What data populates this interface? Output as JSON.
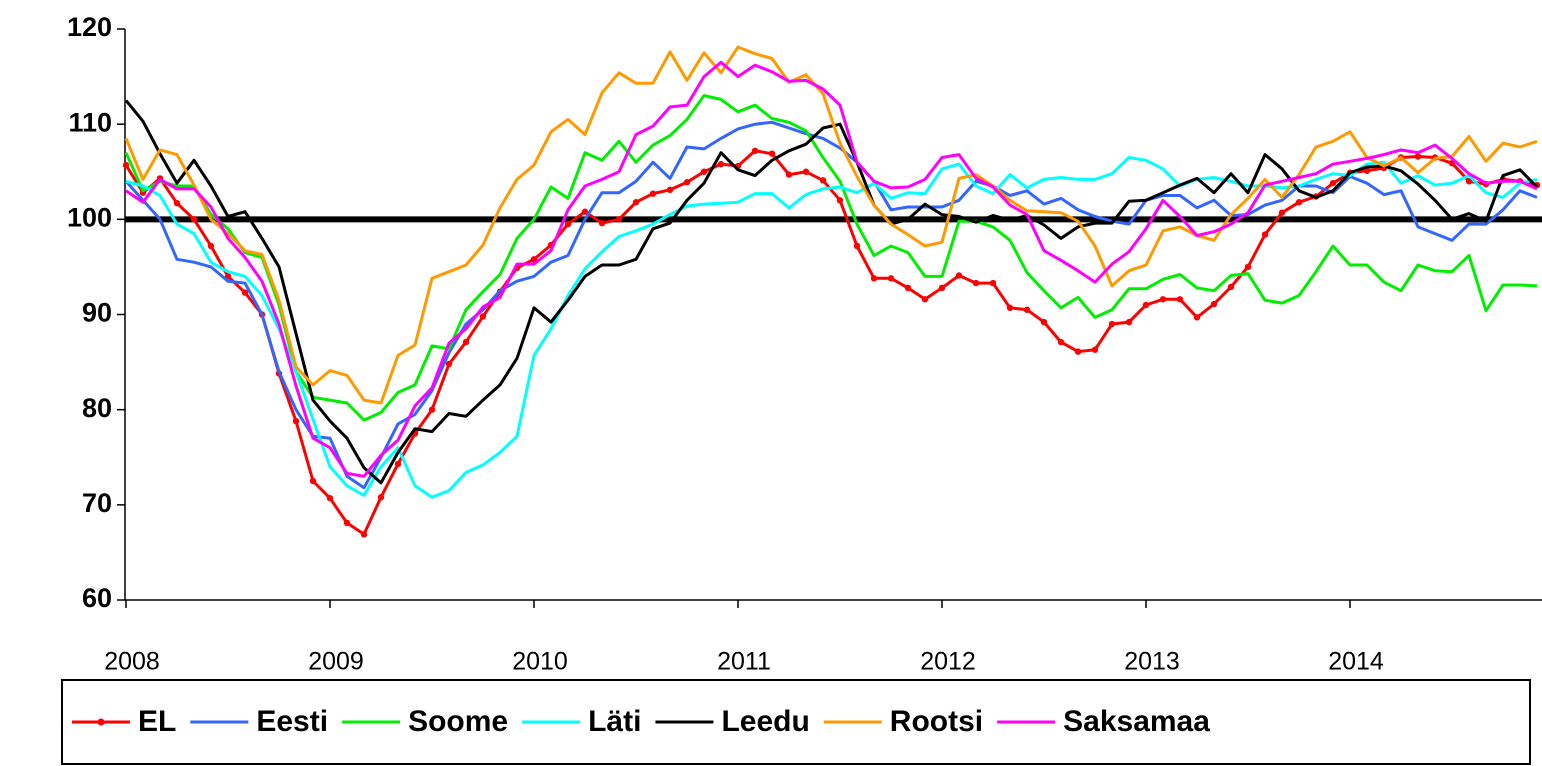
{
  "chart_data": {
    "type": "line",
    "categories": [
      "2008",
      null,
      null,
      null,
      null,
      null,
      null,
      null,
      null,
      null,
      null,
      null,
      "2009",
      null,
      null,
      null,
      null,
      null,
      null,
      null,
      null,
      null,
      null,
      null,
      "2010",
      null,
      null,
      null,
      null,
      null,
      null,
      null,
      null,
      null,
      null,
      null,
      "2011",
      null,
      null,
      null,
      null,
      null,
      null,
      null,
      null,
      null,
      null,
      null,
      "2012",
      null,
      null,
      null,
      null,
      null,
      null,
      null,
      null,
      null,
      null,
      null,
      "2013",
      null,
      null,
      null,
      null,
      null,
      null,
      null,
      null,
      null,
      null,
      null,
      "2014",
      null,
      null,
      null,
      null,
      null,
      null,
      null,
      null,
      null,
      null,
      null
    ],
    "ylim": [
      60,
      120
    ],
    "yticks": [
      60,
      70,
      80,
      90,
      100,
      110,
      120
    ],
    "reference_line": 100,
    "series": [
      {
        "name": "EL",
        "color": "#ff0000",
        "markers": true,
        "values": [
          105.7,
          102.8,
          104.3,
          101.7,
          100,
          97.2,
          94,
          92.3,
          90,
          83.8,
          78.8,
          72.5,
          70.7,
          68.1,
          66.9,
          70.8,
          74.3,
          77.5,
          80,
          84.8,
          87.1,
          89.8,
          92.4,
          94.9,
          95.8,
          97.3,
          99.5,
          100.8,
          99.6,
          100,
          101.8,
          102.7,
          103.1,
          103.9,
          105,
          105.8,
          105.6,
          107.2,
          106.9,
          104.7,
          105,
          104.1,
          102,
          97.2,
          93.8,
          93.8,
          92.8,
          91.6,
          92.8,
          94.1,
          93.3,
          93.3,
          90.7,
          90.5,
          89.2,
          87.1,
          86.1,
          86.3,
          89,
          89.2,
          91,
          91.6,
          91.6,
          89.7,
          91.1,
          92.9,
          95,
          98.4,
          100.7,
          101.8,
          102.4,
          103.8,
          104.9,
          105.1,
          105.4,
          106.5,
          106.6,
          106.5,
          105.9,
          104,
          103.7,
          104.2,
          104,
          103.6
        ]
      },
      {
        "name": "Eesti",
        "color": "#3366ff",
        "values": [
          104,
          102,
          100,
          95.8,
          95.5,
          95,
          93.5,
          93.3,
          90,
          84,
          80,
          77.2,
          77,
          73,
          71.8,
          75,
          78.5,
          79.5,
          82,
          86,
          89,
          90.5,
          92.5,
          93.5,
          94,
          95.5,
          96.2,
          100,
          102.8,
          102.8,
          104,
          106,
          104.3,
          107.6,
          107.4,
          108.5,
          109.5,
          110,
          110.2,
          109.6,
          109,
          108.5,
          107.5,
          106,
          104,
          101,
          101.3,
          101.3,
          101.3,
          102,
          104,
          103.5,
          102.5,
          103,
          101.6,
          102.2,
          101,
          100.3,
          99.8,
          99.5,
          102,
          102.5,
          102.5,
          101.2,
          102,
          100.4,
          100.5,
          101.5,
          102,
          103.5,
          103.5,
          102.8,
          104.5,
          103.8,
          102.6,
          103,
          99.2,
          98.5,
          97.8,
          99.5,
          99.5,
          101,
          103,
          102.3
        ]
      },
      {
        "name": "Soome",
        "color": "#00ee00",
        "values": [
          107,
          103,
          104,
          103.5,
          103.5,
          100.5,
          99,
          96.5,
          96,
          91,
          84,
          81.3,
          81,
          80.7,
          78.9,
          79.7,
          81.8,
          82.6,
          86.7,
          86.4,
          90.5,
          92.4,
          94.2,
          98,
          100,
          103.4,
          102.2,
          107,
          106.2,
          108.2,
          106,
          107.8,
          108.8,
          110.5,
          113,
          112.6,
          111.3,
          112,
          110.6,
          110.2,
          109.3,
          106.5,
          104,
          99.5,
          96.2,
          97.2,
          96.5,
          94,
          94,
          99.8,
          99.8,
          99.2,
          97.8,
          94.4,
          92.5,
          90.7,
          91.8,
          89.7,
          90.5,
          92.7,
          92.7,
          93.7,
          94.2,
          92.8,
          92.5,
          94.1,
          94.3,
          91.5,
          91.2,
          92,
          94.5,
          97.2,
          95.2,
          95.2,
          93.4,
          92.5,
          95.2,
          94.6,
          94.5,
          96.2,
          90.4,
          93.1,
          93.1,
          93
        ]
      },
      {
        "name": "Läti",
        "color": "#00ffff",
        "values": [
          104,
          103.5,
          102.5,
          99.5,
          98.5,
          95.5,
          94.5,
          94,
          92,
          88.5,
          84,
          79,
          74,
          72,
          71,
          74,
          76,
          72,
          70.8,
          71.5,
          73.4,
          74.2,
          75.5,
          77.2,
          85.7,
          88.5,
          92,
          94.8,
          96.6,
          98.2,
          98.8,
          99.5,
          100.5,
          101.4,
          101.6,
          101.7,
          101.8,
          102.7,
          102.7,
          101.2,
          102.6,
          103.2,
          103.4,
          102.8,
          103.8,
          102.2,
          102.8,
          102.7,
          105.3,
          105.8,
          103.5,
          102.7,
          104.7,
          103.3,
          104.2,
          104.4,
          104.2,
          104.2,
          104.8,
          106.5,
          106.2,
          105.3,
          103.5,
          104.2,
          104.4,
          104,
          103.5,
          103.5,
          103.3,
          103.5,
          104.2,
          104.8,
          104.6,
          105.8,
          106,
          103.8,
          104.6,
          103.6,
          103.8,
          104.6,
          102.8,
          102.3,
          103.8,
          104.2
        ]
      },
      {
        "name": "Leedu",
        "color": "#000000",
        "values": [
          112.5,
          110.3,
          106.9,
          103.8,
          106.2,
          103.5,
          100.3,
          100.8,
          98,
          95,
          88,
          81,
          78.8,
          77,
          73.9,
          72.3,
          75.5,
          78,
          77.7,
          79.6,
          79.3,
          81,
          82.6,
          85.4,
          90.7,
          89.2,
          91.5,
          94,
          95.2,
          95.2,
          95.8,
          99,
          99.6,
          102,
          103.8,
          107,
          105.2,
          104.6,
          106.2,
          107.2,
          107.9,
          109.6,
          110,
          106,
          101.5,
          99.5,
          100,
          101.6,
          100.5,
          100.3,
          99.7,
          100.4,
          99.9,
          100.4,
          99.4,
          98,
          99.2,
          99.6,
          99.6,
          101.9,
          102,
          102.8,
          103.6,
          104.3,
          102.8,
          104.8,
          102.8,
          106.8,
          105.3,
          103,
          102.3,
          103,
          104.9,
          105.5,
          105.6,
          105.1,
          103.7,
          102,
          100,
          100.6,
          99.8,
          104.6,
          105.2,
          103.4
        ]
      },
      {
        "name": "Rootsi",
        "color": "#ff9900",
        "values": [
          108.5,
          104.2,
          107.3,
          106.8,
          103.6,
          100,
          98.5,
          96.7,
          96.3,
          91.5,
          84.5,
          82.6,
          84.1,
          83.6,
          81,
          80.7,
          85.7,
          86.8,
          93.8,
          94.5,
          95.2,
          97.3,
          101.2,
          104.2,
          105.7,
          109.2,
          110.5,
          108.9,
          113.3,
          115.4,
          114.3,
          114.3,
          117.6,
          114.6,
          117.5,
          115.4,
          118.1,
          117.4,
          116.9,
          114.4,
          115.2,
          113.2,
          108,
          104.5,
          101.5,
          99.5,
          98.4,
          97.2,
          97.6,
          104.3,
          104.7,
          103.5,
          102,
          100.9,
          100.8,
          100.7,
          99.8,
          97.2,
          93,
          94.6,
          95.2,
          98.8,
          99.2,
          98.3,
          97.8,
          100.5,
          102.2,
          104.2,
          102.3,
          104.7,
          107.6,
          108.2,
          109.2,
          106.5,
          105.6,
          106.5,
          104.9,
          106.4,
          106.6,
          108.7,
          106.1,
          108,
          107.6,
          108.2
        ]
      },
      {
        "name": "Saksamaa",
        "color": "#ff00ff",
        "values": [
          103,
          101.8,
          104.2,
          103.2,
          103.2,
          101.3,
          98,
          96,
          93.5,
          89,
          82.5,
          77,
          76,
          73.3,
          73,
          75.2,
          76.8,
          80.4,
          82.3,
          87,
          88.5,
          90.8,
          91.8,
          95.3,
          95.3,
          96.7,
          101,
          103.5,
          104.2,
          105,
          108.9,
          109.8,
          111.8,
          112,
          115,
          116.5,
          115,
          116.2,
          115.5,
          114.5,
          114.6,
          113.7,
          112,
          106,
          104,
          103.3,
          103.4,
          104.2,
          106.5,
          106.8,
          104.3,
          103.4,
          101.5,
          100.5,
          96.7,
          95.7,
          94.6,
          93.4,
          95.3,
          96.6,
          99,
          102,
          100.3,
          98.3,
          98.7,
          99.5,
          100.7,
          103.6,
          104,
          104.4,
          104.8,
          105.8,
          106.1,
          106.4,
          106.8,
          107.3,
          107,
          107.8,
          106.4,
          104.8,
          103.8,
          104,
          104,
          103.2
        ]
      }
    ]
  }
}
